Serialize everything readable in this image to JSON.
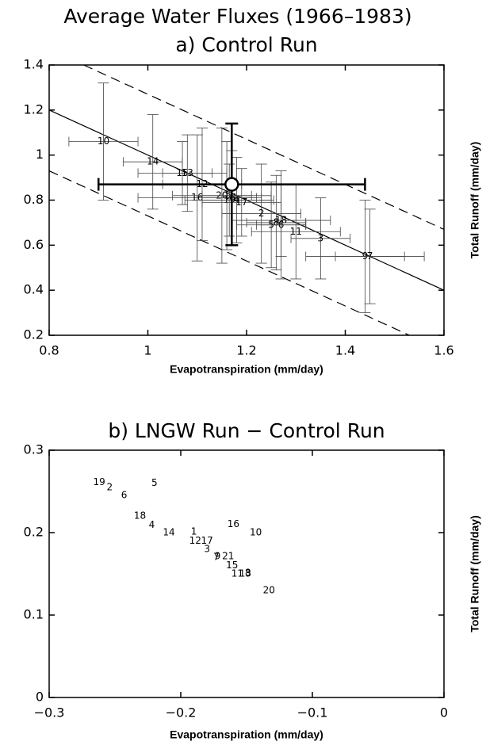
{
  "title": "Average Water Fluxes (1966–1983)",
  "chart_data": [
    {
      "type": "scatter",
      "title": "a) Control Run",
      "x_label": "Evapotranspiration (mm/day)",
      "y_label": "Total Runoff (mm/day)",
      "xlim": [
        0.8,
        1.6
      ],
      "ylim": [
        0.2,
        1.4
      ],
      "xticks": [
        0.8,
        1,
        1.2,
        1.4,
        1.6
      ],
      "yticks": [
        0.2,
        0.4,
        0.6,
        0.8,
        1,
        1.2,
        1.4
      ],
      "labels": [
        "10",
        "14",
        "15",
        "13",
        "12",
        "16",
        "20",
        "21",
        "19",
        "17",
        "4",
        "2",
        "18",
        "8",
        "6",
        "5",
        "11",
        "3",
        "9",
        "7",
        "1"
      ],
      "x": [
        0.91,
        1.01,
        1.07,
        1.08,
        1.11,
        1.1,
        1.15,
        1.17,
        1.165,
        1.19,
        1.18,
        1.23,
        1.27,
        1.26,
        1.27,
        1.25,
        1.3,
        1.35,
        1.44,
        1.45,
        1.16
      ],
      "y": [
        1.06,
        0.97,
        0.92,
        0.92,
        0.87,
        0.81,
        0.82,
        0.81,
        0.8,
        0.79,
        0.8,
        0.74,
        0.71,
        0.7,
        0.69,
        0.69,
        0.66,
        0.63,
        0.55,
        0.55,
        0.82
      ],
      "xerr": [
        0.07,
        0.06,
        0.09,
        0.05,
        0.08,
        0.12,
        0.1,
        0.06,
        0.09,
        0.08,
        0.07,
        0.08,
        0.1,
        0.06,
        0.05,
        0.07,
        0.09,
        0.06,
        0.12,
        0.07,
        0.05
      ],
      "yerr": [
        0.26,
        0.21,
        0.14,
        0.17,
        0.25,
        0.28,
        0.3,
        0.21,
        0.16,
        0.15,
        0.19,
        0.22,
        0.16,
        0.21,
        0.24,
        0.19,
        0.21,
        0.18,
        0.25,
        0.21,
        0.24
      ],
      "mean": {
        "x": 1.17,
        "y": 0.87,
        "xerr": 0.27,
        "yerr": 0.27
      },
      "reference_lines": [
        {
          "x": [
            0.8,
            1.6
          ],
          "y": [
            1.2,
            0.4
          ],
          "style": "solid"
        },
        {
          "x": [
            0.87,
            1.6
          ],
          "y": [
            1.4,
            0.67
          ],
          "style": "dashed"
        },
        {
          "x": [
            0.8,
            1.53
          ],
          "y": [
            0.93,
            0.2
          ],
          "style": "dashed"
        }
      ]
    },
    {
      "type": "scatter",
      "title": "b) LNGW Run − Control Run",
      "x_label": "Evapotranspiration (mm/day)",
      "y_label": "Total Runoff (mm/day)",
      "xlim": [
        -0.3,
        0
      ],
      "ylim": [
        0,
        0.3
      ],
      "xticks": [
        {
          "value": -0.3,
          "label": "−0.3"
        },
        {
          "value": -0.2,
          "label": "−0.2"
        },
        {
          "value": -0.1,
          "label": "−0.1"
        },
        0
      ],
      "yticks": [
        0,
        0.1,
        0.2,
        0.3
      ],
      "labels": [
        "19",
        "2",
        "6",
        "5",
        "18",
        "4",
        "14",
        "1",
        "12",
        "17",
        "3",
        "7",
        "9",
        "21",
        "16",
        "10",
        "15",
        "13",
        "8",
        "20",
        "11"
      ],
      "x": [
        -0.262,
        -0.254,
        -0.243,
        -0.22,
        -0.231,
        -0.222,
        -0.209,
        -0.19,
        -0.189,
        -0.18,
        -0.18,
        -0.173,
        -0.172,
        -0.164,
        -0.16,
        -0.143,
        -0.161,
        -0.151,
        -0.149,
        -0.133,
        -0.157
      ],
      "y": [
        0.261,
        0.255,
        0.245,
        0.26,
        0.22,
        0.209,
        0.2,
        0.201,
        0.19,
        0.19,
        0.18,
        0.17,
        0.171,
        0.171,
        0.21,
        0.2,
        0.16,
        0.15,
        0.151,
        0.13,
        0.15
      ]
    }
  ]
}
